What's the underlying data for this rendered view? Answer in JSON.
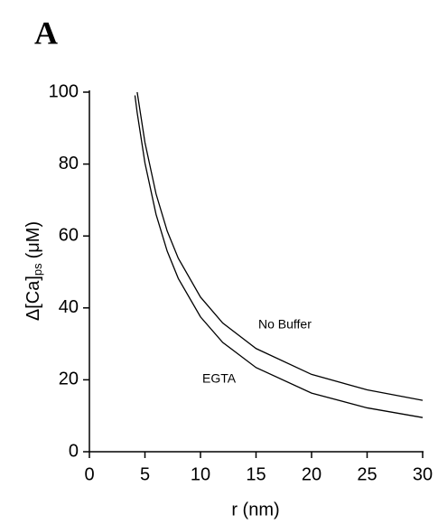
{
  "panel_label": "A",
  "chart_data": {
    "type": "line",
    "xlabel": "r (nm)",
    "ylabel": {
      "main": "Δ[Ca]",
      "sub": "ps",
      "unit": "(μM)"
    },
    "x": [
      4.1,
      4.3,
      5,
      6,
      7,
      8,
      10,
      12,
      15,
      20,
      25,
      30
    ],
    "series": [
      {
        "name": "No Buffer",
        "color": "#000000",
        "values": [
          null,
          100,
          86,
          71.7,
          61.4,
          53.8,
          43,
          35.8,
          28.7,
          21.5,
          17.2,
          14.3
        ]
      },
      {
        "name": "EGTA",
        "color": "#000000",
        "values": [
          99.1,
          94.3,
          80.3,
          66,
          55.8,
          48.2,
          37.5,
          30.4,
          23.4,
          16.3,
          12.2,
          9.5
        ]
      }
    ],
    "xlim": [
      0,
      30
    ],
    "xticks": [
      0,
      5,
      10,
      15,
      20,
      25,
      30
    ],
    "ylim": [
      0,
      100
    ],
    "yticks": [
      0,
      20,
      40,
      60,
      80,
      100
    ],
    "grid": false
  }
}
